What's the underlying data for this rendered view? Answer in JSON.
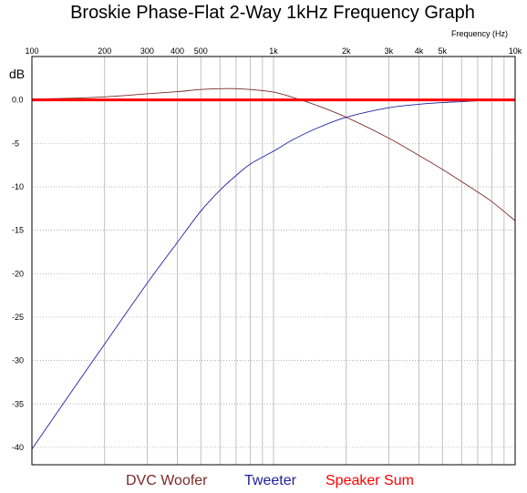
{
  "chart_data": {
    "type": "line",
    "title": "Broskie Phase-Flat 2-Way 1kHz Frequency Graph",
    "xlabel": "Frequency   (Hz)",
    "ylabel": "dB",
    "x_scale": "log",
    "xlim": [
      100,
      10000
    ],
    "ylim": [
      -42,
      5
    ],
    "x_ticks": [
      {
        "value": 100,
        "label": "100"
      },
      {
        "value": 200,
        "label": "200"
      },
      {
        "value": 300,
        "label": "300"
      },
      {
        "value": 400,
        "label": "400"
      },
      {
        "value": 500,
        "label": "500"
      },
      {
        "value": 1000,
        "label": "1k"
      },
      {
        "value": 2000,
        "label": "2k"
      },
      {
        "value": 3000,
        "label": "3k"
      },
      {
        "value": 4000,
        "label": "4k"
      },
      {
        "value": 5000,
        "label": "5k"
      },
      {
        "value": 10000,
        "label": "10k"
      }
    ],
    "y_ticks": [
      {
        "value": 0,
        "label": "0.0"
      },
      {
        "value": -5,
        "label": "-5"
      },
      {
        "value": -10,
        "label": "-10"
      },
      {
        "value": -15,
        "label": "-15"
      },
      {
        "value": -20,
        "label": "-20"
      },
      {
        "value": -25,
        "label": "-25"
      },
      {
        "value": -30,
        "label": "-30"
      },
      {
        "value": -35,
        "label": "-35"
      },
      {
        "value": -40,
        "label": "-40"
      }
    ],
    "grid": true,
    "legend_position": "bottom",
    "series": [
      {
        "name": "DVC Woofer",
        "color": "#7a2a2a",
        "x": [
          100,
          150,
          200,
          300,
          400,
          500,
          600,
          700,
          800,
          1000,
          1200,
          1500,
          2000,
          3000,
          4000,
          5000,
          6000,
          7000,
          8000,
          10000
        ],
        "y": [
          0.1,
          0.2,
          0.35,
          0.7,
          0.95,
          1.2,
          1.3,
          1.3,
          1.2,
          0.9,
          0.3,
          -0.6,
          -2.0,
          -4.4,
          -6.4,
          -8.0,
          -9.4,
          -10.6,
          -11.7,
          -13.9
        ]
      },
      {
        "name": "Tweeter",
        "color": "#2020a0",
        "x": [
          100,
          150,
          200,
          300,
          400,
          500,
          600,
          700,
          800,
          1000,
          1200,
          1500,
          2000,
          3000,
          4000,
          5000,
          6000,
          7000,
          8000,
          10000
        ],
        "y": [
          -40.2,
          -33.1,
          -28.1,
          -21.1,
          -16.4,
          -12.8,
          -10.4,
          -8.7,
          -7.4,
          -5.9,
          -4.6,
          -3.3,
          -2.0,
          -0.9,
          -0.5,
          -0.3,
          -0.2,
          -0.1,
          -0.05,
          0.0
        ]
      },
      {
        "name": "Speaker Sum",
        "color": "#ff0000",
        "x": [
          100,
          10000
        ],
        "y": [
          0.0,
          0.0
        ]
      }
    ]
  }
}
